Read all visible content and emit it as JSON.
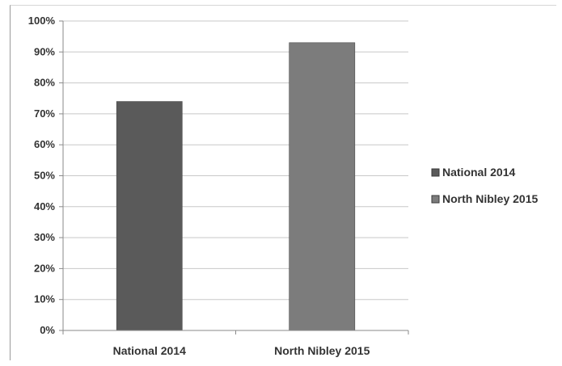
{
  "chart_data": {
    "type": "bar",
    "categories": [
      "National 2014",
      "North Nibley 2015"
    ],
    "series": [
      {
        "name": "National 2014",
        "values": [
          74,
          null
        ],
        "color": "#5a5a5a"
      },
      {
        "name": "North Nibley 2015",
        "values": [
          null,
          93
        ],
        "color": "#7c7c7c"
      }
    ],
    "yticks": [
      "0%",
      "10%",
      "20%",
      "30%",
      "40%",
      "50%",
      "60%",
      "70%",
      "80%",
      "90%",
      "100%"
    ],
    "ylim": [
      0,
      100
    ],
    "grid": true,
    "legend": "right"
  }
}
